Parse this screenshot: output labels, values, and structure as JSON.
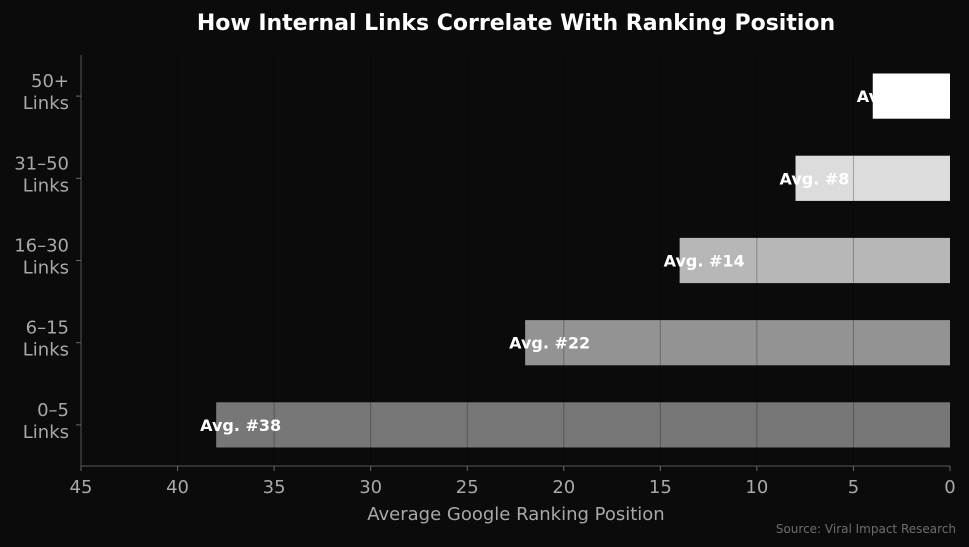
{
  "chart_data": {
    "type": "bar",
    "orientation": "horizontal",
    "title": "How Internal Links Correlate With Ranking Position",
    "xlabel": "Average Google Ranking Position",
    "ylabel": "",
    "categories": [
      [
        "0–5",
        "Links"
      ],
      [
        "6–15",
        "Links"
      ],
      [
        "16–30",
        "Links"
      ],
      [
        "31–50",
        "Links"
      ],
      [
        "50+",
        "Links"
      ]
    ],
    "values": [
      38,
      22,
      14,
      8,
      4
    ],
    "data_labels": [
      "Avg. #38",
      "Avg. #22",
      "Avg. #14",
      "Avg. #8",
      "Avg. #4"
    ],
    "bar_colors": [
      "#777777",
      "#939393",
      "#b7b7b7",
      "#dcdcdc",
      "#ffffff"
    ],
    "xlim": [
      45,
      0
    ],
    "x_inverted": true,
    "x_ticks": [
      45,
      40,
      35,
      30,
      25,
      20,
      15,
      10,
      5,
      0
    ],
    "grid": "vertical gridlines",
    "source": "Source: Viral Impact Research",
    "background": "#0b0b0b"
  }
}
